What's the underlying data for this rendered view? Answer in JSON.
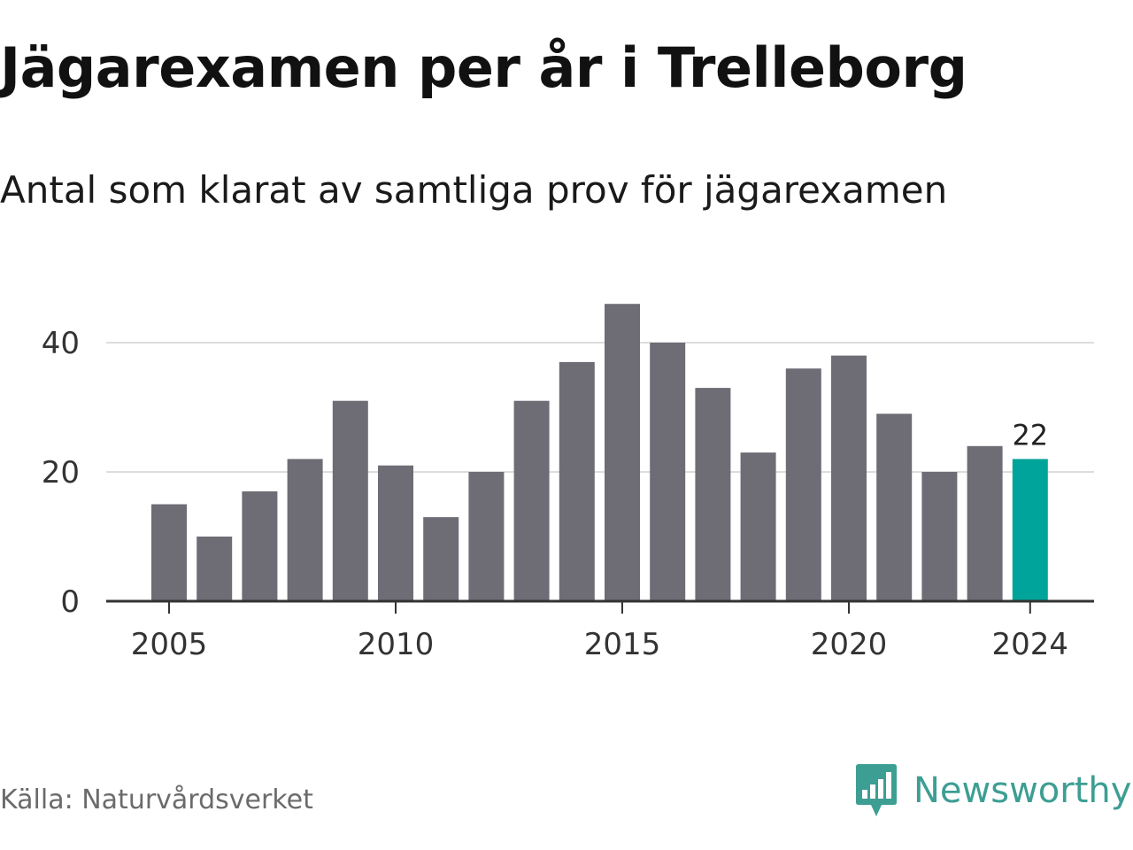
{
  "title": "Jägarexamen per år i Trelleborg",
  "subtitle": "Antal som klarat av samtliga prov för jägarexamen",
  "source": "Källa: Naturvårdsverket",
  "brand": {
    "name": "Newsworthy",
    "icon": "newsworthy-logo-icon",
    "color": "#3d9e93"
  },
  "colors": {
    "bar": "#6e6d75",
    "highlight": "#00a49a",
    "grid": "#dddddd",
    "axis": "#333333"
  },
  "chart_data": {
    "type": "bar",
    "x": [
      2005,
      2006,
      2007,
      2008,
      2009,
      2010,
      2011,
      2012,
      2013,
      2014,
      2015,
      2016,
      2017,
      2018,
      2019,
      2020,
      2021,
      2022,
      2023,
      2024
    ],
    "values": [
      15,
      10,
      17,
      22,
      31,
      21,
      13,
      20,
      31,
      37,
      46,
      40,
      33,
      23,
      36,
      38,
      29,
      20,
      24,
      22
    ],
    "ylim": [
      0,
      46
    ],
    "y_ticks": [
      0,
      20,
      40
    ],
    "x_ticks": [
      2005,
      2010,
      2015,
      2020,
      2024
    ],
    "highlight": {
      "x": 2024,
      "label": "22"
    },
    "grid": true
  }
}
